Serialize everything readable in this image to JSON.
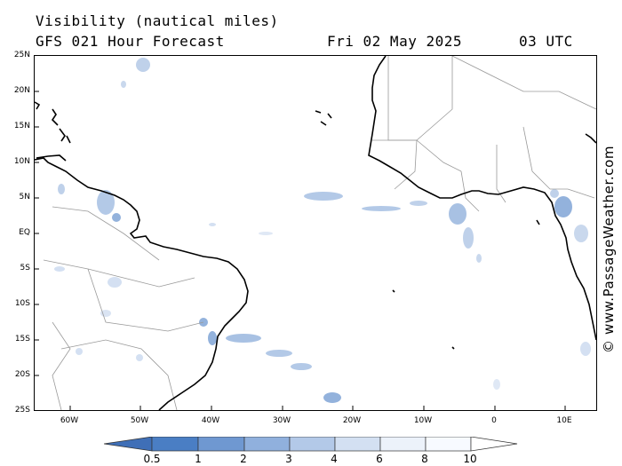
{
  "header": {
    "variable": "Visibility (nautical miles)",
    "model": "GFS 021 Hour Forecast",
    "date": "Fri 02 May 2025",
    "time": "03 UTC"
  },
  "map": {
    "lat_labels": [
      "25N",
      "20N",
      "15N",
      "10N",
      "5N",
      "EQ",
      "5S",
      "10S",
      "15S",
      "20S",
      "25S"
    ],
    "lon_labels": [
      "60W",
      "50W",
      "40W",
      "30W",
      "20W",
      "10W",
      "0",
      "10E"
    ],
    "land_color": "#ffffff",
    "coastline_color": "#000000",
    "border_color": "#9a9a9a",
    "low_visibility_color": "#5b8fd6"
  },
  "watermark": "© www.PassageWeather.com",
  "colorbar": {
    "labels": [
      "0.5",
      "1",
      "2",
      "3",
      "4",
      "6",
      "8",
      "10"
    ],
    "colors": [
      "#3f6fb7",
      "#4a7ec4",
      "#6f98d1",
      "#90b0dd",
      "#b3c9e8",
      "#d3e0f2",
      "#ecf2fa",
      "#ffffff"
    ]
  }
}
